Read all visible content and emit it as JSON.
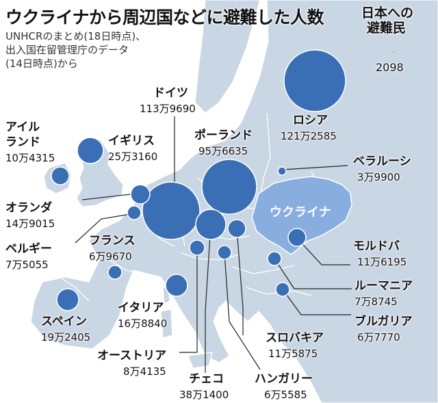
{
  "title": "ウクライナから周辺国などに避難した人数",
  "subtitle_line1": "UNHCRのまとめ(18日時点)、",
  "subtitle_line2": "出入国在留管理庁のデータ",
  "subtitle_line3": "(14日時点)から",
  "japan": {
    "title_line1": "日本への",
    "title_line2": "避難民",
    "value": "2098"
  },
  "ukraine_label": "ウクライナ",
  "colors": {
    "sea": "#ffffff",
    "land": "#c9d6e4",
    "ukraine": "#88aee0",
    "bubble": "#3a6fb5",
    "bubble_stroke": "#ffffff",
    "leader": "#222222"
  },
  "countries": [
    {
      "id": "russia",
      "name": "ロシア",
      "value": "121万2585"
    },
    {
      "id": "germany",
      "name": "ドイツ",
      "value": "113万9690"
    },
    {
      "id": "poland",
      "name": "ポーランド",
      "value": "95万6635"
    },
    {
      "id": "ireland",
      "name_line1": "アイル",
      "name_line2": "ランド",
      "value": "10万4315"
    },
    {
      "id": "uk",
      "name": "イギリス",
      "value": "25万3160"
    },
    {
      "id": "belarus",
      "name": "ベラルーシ",
      "value": "3万9900"
    },
    {
      "id": "netherlands",
      "name": "オランダ",
      "value": "14万9015"
    },
    {
      "id": "belgium",
      "name": "ベルギー",
      "value": "7万5055"
    },
    {
      "id": "france",
      "name": "フランス",
      "value": "6万9670"
    },
    {
      "id": "moldova",
      "name": "モルドバ",
      "value": "11万6195"
    },
    {
      "id": "romania",
      "name": "ルーマニア",
      "value": "7万8745"
    },
    {
      "id": "spain",
      "name": "スペイン",
      "value": "19万2405"
    },
    {
      "id": "italy",
      "name": "イタリア",
      "value": "16万8840"
    },
    {
      "id": "bulgaria",
      "name": "ブルガリア",
      "value": "6万7770"
    },
    {
      "id": "slovakia",
      "name": "スロバキア",
      "value": "11万5875"
    },
    {
      "id": "austria",
      "name": "オーストリア",
      "value": "8万4135"
    },
    {
      "id": "czech",
      "name": "チェコ",
      "value": "38万1400"
    },
    {
      "id": "hungary",
      "name": "ハンガリー",
      "value": "6万5585"
    }
  ]
}
